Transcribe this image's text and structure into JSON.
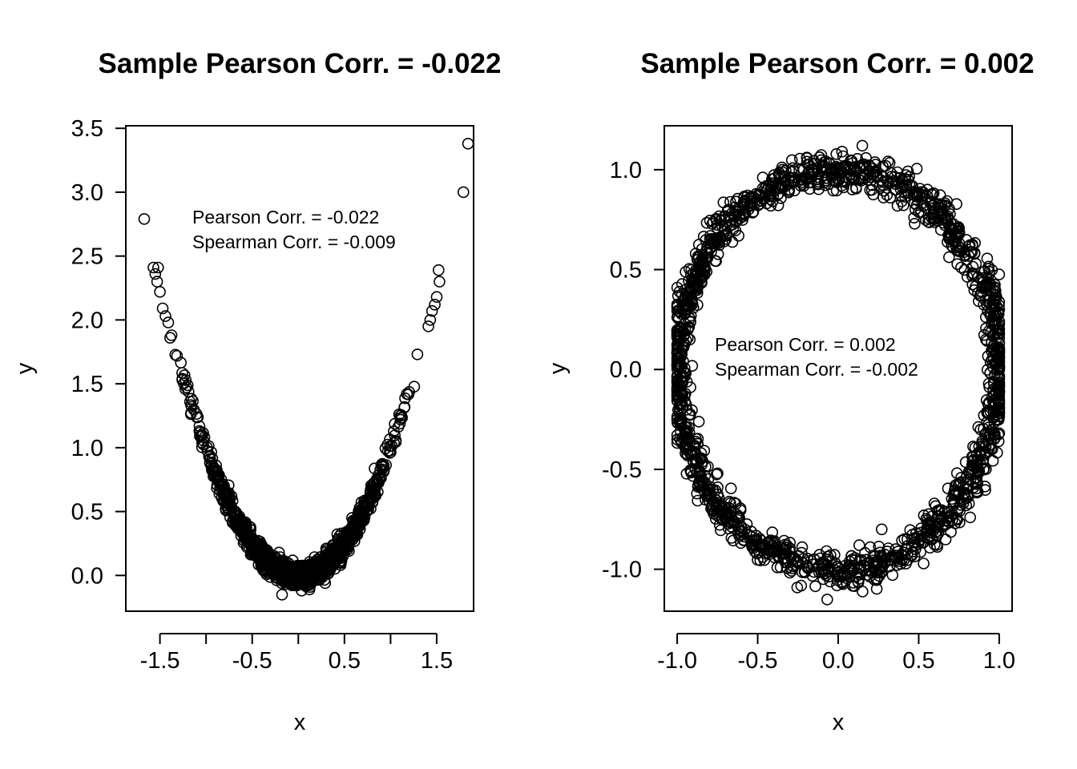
{
  "chart_data": [
    {
      "type": "scatter",
      "title": "Sample Pearson Corr. =  -0.022",
      "xlabel": "x",
      "ylabel": "y",
      "xlim": [
        -1.87,
        1.9
      ],
      "ylim": [
        -0.28,
        3.52
      ],
      "x_ticks": [
        -1.5,
        -1.0,
        -0.5,
        0.0,
        0.5,
        1.0,
        1.5
      ],
      "x_tick_labels": [
        "-1.5",
        "",
        "-0.5",
        "",
        "0.5",
        "",
        "1.5"
      ],
      "y_ticks": [
        0.0,
        0.5,
        1.0,
        1.5,
        2.0,
        2.5,
        3.0,
        3.5
      ],
      "y_tick_labels": [
        "0.0",
        "0.5",
        "1.0",
        "1.5",
        "2.0",
        "2.5",
        "3.0",
        "3.5"
      ],
      "annotations": [
        "Pearson Corr. =  -0.022",
        "Spearman Corr. =  -0.009"
      ],
      "relationship": "y = x^2 + noise (noise sd approx 0.05)",
      "n_points": 2000,
      "series": [
        {
          "name": "points",
          "x": [
            -1.67,
            -1.57,
            -1.52,
            -1.55,
            -1.53,
            -1.5,
            -1.47,
            -1.44,
            -1.41,
            -1.39,
            1.52,
            1.53,
            1.5,
            1.48,
            1.45,
            1.43,
            1.41,
            1.79,
            1.84
          ],
          "y": [
            2.79,
            2.41,
            2.41,
            2.36,
            2.3,
            2.22,
            2.09,
            2.03,
            1.98,
            1.86,
            2.39,
            2.3,
            2.18,
            2.12,
            2.07,
            2.0,
            1.95,
            3.0,
            3.38
          ]
        }
      ]
    },
    {
      "type": "scatter",
      "title": "Sample Pearson Corr. =  0.002",
      "xlabel": "x",
      "ylabel": "y",
      "xlim": [
        -1.08,
        1.08
      ],
      "ylim": [
        -1.21,
        1.22
      ],
      "x_ticks": [
        -1.0,
        -0.5,
        0.0,
        0.5,
        1.0
      ],
      "x_tick_labels": [
        "-1.0",
        "-0.5",
        "0.0",
        "0.5",
        "1.0"
      ],
      "y_ticks": [
        -1.0,
        -0.5,
        0.0,
        0.5,
        1.0
      ],
      "y_tick_labels": [
        "-1.0",
        "-0.5",
        "0.0",
        "0.5",
        "1.0"
      ],
      "annotations": [
        "Pearson Corr. =  0.002",
        "Spearman Corr. =  -0.002"
      ],
      "relationship": "points on unit circle x = cos(t), y = sin(t) with noise (sd approx 0.05)",
      "n_points": 2000,
      "series": [
        {
          "name": "points",
          "x": [
            0.15,
            0.27,
            -0.87
          ],
          "y": [
            1.12,
            -0.8,
            -0.58
          ]
        }
      ]
    }
  ]
}
